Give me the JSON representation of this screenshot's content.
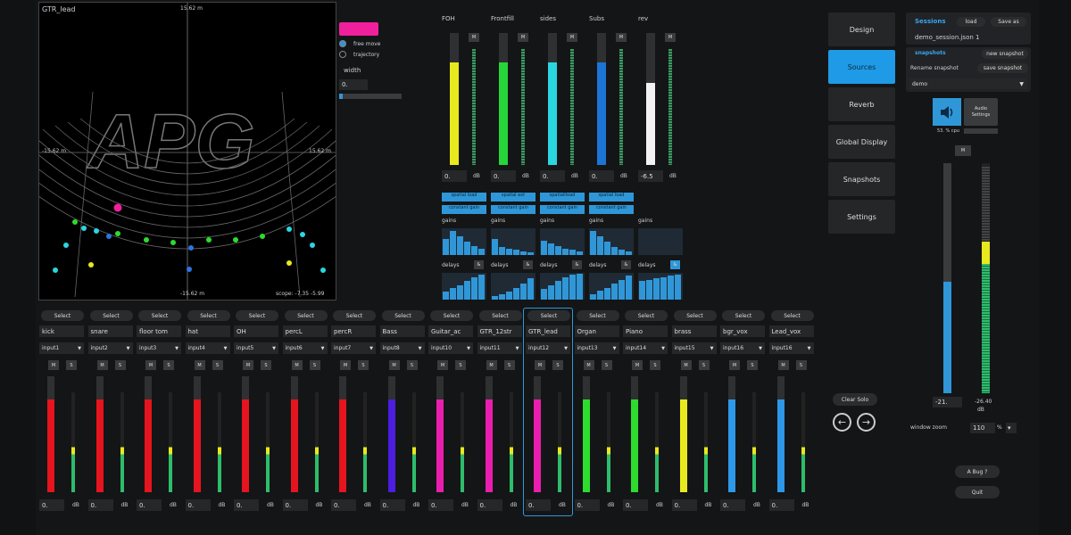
{
  "stage": {
    "selected_name": "GTR_lead",
    "top_label": "15.62 m",
    "left_label": "-15.62 m",
    "right_label": "15.62 m",
    "bottom_label": "-15.62 m",
    "scope_label": "scope: -7.35 -5.99",
    "logo": "APG"
  },
  "view_options": {
    "free_move_label": "free move",
    "trajectory_label": "trajectory",
    "width_label": "width",
    "width_value": "0.",
    "accent_color": "#f0209d"
  },
  "outputs": [
    {
      "name": "FOH",
      "value": "0.",
      "unit": "dB",
      "color": "#e8e81e",
      "level": 0.78
    },
    {
      "name": "Frontfill",
      "value": "0.",
      "unit": "dB",
      "color": "#27d43a",
      "level": 0.78
    },
    {
      "name": "sides",
      "value": "0.",
      "unit": "dB",
      "color": "#2ad6e0",
      "level": 0.78
    },
    {
      "name": "Subs",
      "value": "0.",
      "unit": "dB",
      "color": "#1c74d6",
      "level": 0.78
    },
    {
      "name": "rev",
      "value": "-6.5",
      "unit": "dB",
      "color": "#f2f2f2",
      "level": 0.62
    }
  ],
  "output_modes": [
    {
      "mode": "spatial load",
      "gain_mode": "constant gain"
    },
    {
      "mode": "spatial ext",
      "gain_mode": "constant gain"
    },
    {
      "mode": "spatiallload",
      "gain_mode": "constant gain"
    },
    {
      "mode": "spatial load",
      "gain_mode": "constant gain"
    }
  ],
  "output_gains_label": "gains",
  "output_delays_label": "delays",
  "delay_button_label": "&",
  "gain_graphs": [
    [
      0.6,
      0.9,
      0.7,
      0.5,
      0.35,
      0.25
    ],
    [
      0.6,
      0.3,
      0.25,
      0.2,
      0.15,
      0.1
    ],
    [
      0.55,
      0.45,
      0.35,
      0.25,
      0.2,
      0.15
    ],
    [
      0.9,
      0.7,
      0.5,
      0.3,
      0.2,
      0.15
    ],
    []
  ],
  "delay_graphs": [
    [
      0.3,
      0.45,
      0.55,
      0.7,
      0.85,
      0.95
    ],
    [
      0.15,
      0.2,
      0.3,
      0.45,
      0.6,
      0.8
    ],
    [
      0.4,
      0.55,
      0.7,
      0.85,
      0.95,
      0.98
    ],
    [
      0.2,
      0.35,
      0.45,
      0.6,
      0.75,
      0.9
    ],
    [
      0.7,
      0.75,
      0.8,
      0.85,
      0.9,
      0.95
    ]
  ],
  "nav": {
    "items": [
      "Design",
      "Sources",
      "Reverb",
      "Global Display",
      "Snapshots",
      "Settings"
    ],
    "active": 1
  },
  "sessions": {
    "title": "Sessions",
    "load_label": "load",
    "save_as_label": "Save as",
    "file": "demo_session.json 1"
  },
  "snapshots": {
    "title": "snapshots",
    "new_label": "new snapshot",
    "rename_label": "Rename snapshot",
    "save_label": "save snapshot",
    "selected": "demo"
  },
  "audio": {
    "settings_label": "Audio Settings",
    "cpu_label": "53. % cpu"
  },
  "master": {
    "mute_label": "M",
    "value_left": "-21.",
    "value_right": "-26.40",
    "unit": "dB"
  },
  "zoom": {
    "label": "window zoom",
    "value": "110",
    "unit": "%"
  },
  "controls": {
    "clear_solo": "Clear Solo",
    "bug_label": "A Bug ?",
    "quit_label": "Quit",
    "select_label": "Select",
    "mute_label": "M",
    "solo_label": "S",
    "db_unit": "dB"
  },
  "channels": [
    {
      "name": "kick",
      "input": "input1",
      "value": "0.",
      "color": "#e5141e"
    },
    {
      "name": "snare",
      "input": "input2",
      "value": "0.",
      "color": "#e5141e"
    },
    {
      "name": "floor tom",
      "input": "input3",
      "value": "0.",
      "color": "#e5141e"
    },
    {
      "name": "hat",
      "input": "input4",
      "value": "0.",
      "color": "#e5141e"
    },
    {
      "name": "OH",
      "input": "input5",
      "value": "0.",
      "color": "#e5141e"
    },
    {
      "name": "percL",
      "input": "input6",
      "value": "0.",
      "color": "#e5141e"
    },
    {
      "name": "percR",
      "input": "input7",
      "value": "0.",
      "color": "#e5141e"
    },
    {
      "name": "Bass",
      "input": "input8",
      "value": "0.",
      "color": "#4b1ee0"
    },
    {
      "name": "Guitar_ac",
      "input": "input10",
      "value": "0.",
      "color": "#ea1eae"
    },
    {
      "name": "GTR_12str",
      "input": "input11",
      "value": "0.",
      "color": "#ea1eae"
    },
    {
      "name": "GTR_lead",
      "input": "input12",
      "value": "0.",
      "color": "#ea1eae"
    },
    {
      "name": "Organ",
      "input": "input13",
      "value": "0.",
      "color": "#2ddc2d"
    },
    {
      "name": "Piano",
      "input": "input14",
      "value": "0.",
      "color": "#2ddc2d"
    },
    {
      "name": "brass",
      "input": "input15",
      "value": "0.",
      "color": "#e8e81e"
    },
    {
      "name": "bgr_vox",
      "input": "input16",
      "value": "0.",
      "color": "#2d98e8"
    },
    {
      "name": "Lead_vox",
      "input": "input16",
      "value": "0.",
      "color": "#2d98e8"
    }
  ],
  "selected_channel": 10
}
